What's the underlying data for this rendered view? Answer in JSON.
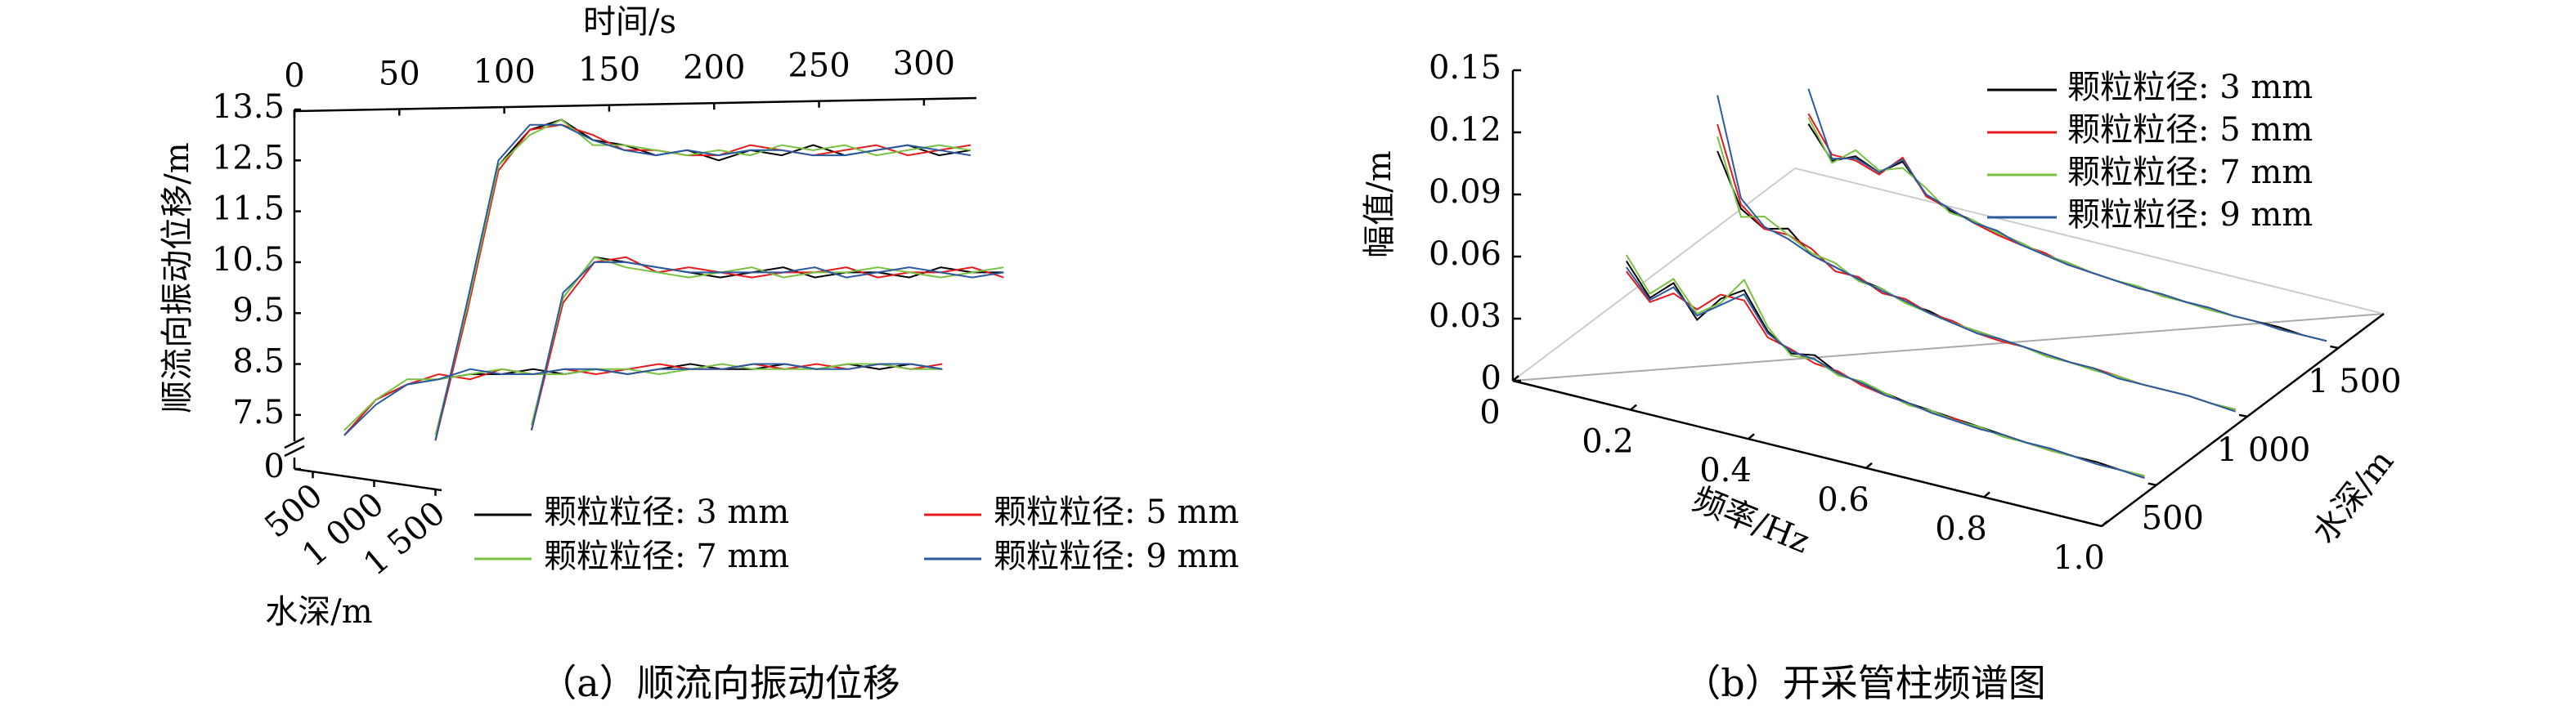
{
  "chart_data": [
    {
      "type": "line3d",
      "caption": "（a）顺流向振动位移",
      "x_label": "时间/s",
      "y_label": "顺流向振动位移/m",
      "z_label": "水深/m",
      "x": [
        0,
        15,
        30,
        45,
        60,
        75,
        90,
        105,
        120,
        135,
        150,
        165,
        180,
        195,
        210,
        225,
        240,
        255,
        270,
        285,
        300
      ],
      "xlim": [
        0,
        325
      ],
      "xticks": [
        0,
        50,
        100,
        150,
        200,
        250,
        300
      ],
      "ylim": [
        7,
        13.5
      ],
      "yticks": [
        0,
        7.5,
        8.5,
        9.5,
        10.5,
        11.5,
        12.5,
        13.5
      ],
      "y_break": true,
      "zlim": [
        350,
        1550
      ],
      "zticks": [
        500,
        {
          "value": 1000,
          "label": "1 000"
        },
        {
          "value": 1500,
          "label": "1 500"
        }
      ],
      "depths": [
        500,
        1000,
        1500
      ],
      "series": [
        {
          "name": "颗粒粒径: 3 mm",
          "color": "#000000",
          "values": [
            [
              null,
              7.1,
              7.8,
              8.1,
              8.2,
              8.3,
              8.3,
              8.4,
              8.3,
              8.4,
              8.3,
              8.4,
              8.5,
              8.4,
              8.4,
              8.5,
              8.4,
              8.5,
              8.4,
              8.5,
              8.4
            ],
            [
              null,
              null,
              null,
              null,
              null,
              7.2,
              9.8,
              10.6,
              10.5,
              10.4,
              10.3,
              10.2,
              10.3,
              10.4,
              10.2,
              10.3,
              10.3,
              10.2,
              10.4,
              10.3,
              10.3
            ],
            [
              7.0,
              9.6,
              12.4,
              13.1,
              13.3,
              12.9,
              12.8,
              12.6,
              12.7,
              12.5,
              12.7,
              12.6,
              12.8,
              12.6,
              12.7,
              12.8,
              12.6,
              12.7,
              null,
              null,
              null
            ]
          ]
        },
        {
          "name": "颗粒粒径: 5 mm",
          "color": "#e41a1c",
          "values": [
            [
              null,
              7.1,
              7.8,
              8.1,
              8.3,
              8.2,
              8.4,
              8.3,
              8.4,
              8.3,
              8.4,
              8.5,
              8.4,
              8.4,
              8.5,
              8.4,
              8.5,
              8.4,
              8.5,
              8.4,
              8.5
            ],
            [
              null,
              null,
              null,
              null,
              null,
              7.2,
              9.7,
              10.5,
              10.6,
              10.3,
              10.4,
              10.3,
              10.2,
              10.3,
              10.3,
              10.4,
              10.2,
              10.3,
              10.3,
              10.4,
              10.2
            ],
            [
              7.0,
              9.5,
              12.3,
              13.1,
              13.2,
              13.0,
              12.7,
              12.7,
              12.6,
              12.6,
              12.8,
              12.7,
              12.6,
              12.7,
              12.8,
              12.6,
              12.7,
              12.8,
              null,
              null,
              null
            ]
          ]
        },
        {
          "name": "颗粒粒径: 7 mm",
          "color": "#7ac143",
          "values": [
            [
              null,
              7.2,
              7.8,
              8.2,
              8.2,
              8.3,
              8.4,
              8.3,
              8.3,
              8.4,
              8.4,
              8.3,
              8.4,
              8.5,
              8.4,
              8.4,
              8.4,
              8.5,
              8.5,
              8.4,
              8.4
            ],
            [
              null,
              null,
              null,
              null,
              null,
              7.3,
              9.8,
              10.6,
              10.4,
              10.3,
              10.2,
              10.3,
              10.4,
              10.2,
              10.3,
              10.3,
              10.4,
              10.3,
              10.2,
              10.3,
              10.4
            ],
            [
              7.1,
              9.6,
              12.4,
              13.0,
              13.3,
              12.8,
              12.8,
              12.7,
              12.6,
              12.7,
              12.6,
              12.8,
              12.7,
              12.8,
              12.6,
              12.7,
              12.8,
              12.7,
              null,
              null,
              null
            ]
          ]
        },
        {
          "name": "颗粒粒径: 9 mm",
          "color": "#2c5aa0",
          "values": [
            [
              null,
              7.1,
              7.7,
              8.1,
              8.2,
              8.4,
              8.3,
              8.3,
              8.4,
              8.4,
              8.3,
              8.4,
              8.4,
              8.4,
              8.5,
              8.5,
              8.4,
              8.4,
              8.5,
              8.5,
              8.4
            ],
            [
              null,
              null,
              null,
              null,
              null,
              7.2,
              9.9,
              10.5,
              10.5,
              10.4,
              10.3,
              10.3,
              10.3,
              10.3,
              10.4,
              10.2,
              10.3,
              10.4,
              10.3,
              10.2,
              10.3
            ],
            [
              7.0,
              9.7,
              12.5,
              13.2,
              13.2,
              12.9,
              12.7,
              12.6,
              12.7,
              12.6,
              12.7,
              12.7,
              12.6,
              12.6,
              12.7,
              12.8,
              12.7,
              12.6,
              null,
              null,
              null
            ]
          ]
        }
      ]
    },
    {
      "type": "waterfall",
      "caption": "（b）开采管柱频谱图",
      "x_label": "频率/Hz",
      "y_label": "幅值/m",
      "z_label": "水深/m",
      "x": [
        0.1,
        0.14,
        0.18,
        0.22,
        0.26,
        0.3,
        0.34,
        0.38,
        0.42,
        0.46,
        0.5,
        0.54,
        0.58,
        0.62,
        0.66,
        0.7,
        0.74,
        0.78,
        0.82,
        0.86,
        0.9,
        0.94,
        0.98
      ],
      "xlim": [
        0,
        1
      ],
      "xticks": [
        0,
        0.2,
        0.4,
        0.6,
        0.8,
        {
          "value": 1,
          "label": "1.0"
        }
      ],
      "ylim": [
        0,
        0.15
      ],
      "yticks": [
        0,
        0.03,
        0.06,
        0.09,
        0.12,
        0.15
      ],
      "zlim": [
        200,
        1750
      ],
      "zticks": [
        500,
        {
          "value": 1000,
          "label": "1 000"
        },
        {
          "value": 1500,
          "label": "1 500"
        }
      ],
      "depths": [
        500,
        1000,
        1500
      ],
      "series": [
        {
          "name": "颗粒粒径: 3 mm",
          "color": "#000000",
          "values": [
            [
              0.045,
              0.03,
              0.04,
              0.025,
              0.038,
              0.045,
              0.028,
              0.02,
              0.022,
              0.016,
              0.014,
              0.012,
              0.01,
              0.009,
              0.008,
              0.007,
              0.006,
              0.005,
              0.005,
              0.004,
              0.004,
              0.003,
              0.003
            ],
            [
              0.065,
              0.04,
              0.033,
              0.036,
              0.026,
              0.023,
              0.02,
              0.018,
              0.014,
              0.013,
              0.01,
              0.009,
              0.008,
              0.007,
              0.006,
              0.005,
              0.005,
              0.004,
              0.003,
              0.003,
              0.003,
              0.002,
              0.002
            ],
            [
              0.045,
              0.03,
              0.035,
              0.03,
              0.038,
              0.025,
              0.02,
              0.018,
              0.015,
              0.013,
              0.01,
              0.009,
              0.007,
              0.006,
              0.005,
              0.005,
              0.004,
              0.004,
              0.003,
              0.003,
              0.003,
              0.002,
              0.002
            ]
          ]
        },
        {
          "name": "颗粒粒径: 5 mm",
          "color": "#e41a1c",
          "values": [
            [
              0.04,
              0.028,
              0.035,
              0.03,
              0.04,
              0.04,
              0.025,
              0.022,
              0.018,
              0.017,
              0.013,
              0.011,
              0.01,
              0.008,
              0.008,
              0.006,
              0.006,
              0.005,
              0.004,
              0.004,
              0.003,
              0.003,
              0.002
            ],
            [
              0.078,
              0.042,
              0.033,
              0.033,
              0.029,
              0.021,
              0.021,
              0.016,
              0.016,
              0.012,
              0.011,
              0.008,
              0.007,
              0.007,
              0.006,
              0.005,
              0.005,
              0.004,
              0.003,
              0.003,
              0.003,
              0.002,
              0.002
            ],
            [
              0.05,
              0.033,
              0.033,
              0.029,
              0.04,
              0.024,
              0.021,
              0.017,
              0.014,
              0.012,
              0.011,
              0.008,
              0.007,
              0.006,
              0.005,
              0.005,
              0.004,
              0.004,
              0.003,
              0.003,
              0.002,
              0.002,
              0.002
            ]
          ]
        },
        {
          "name": "颗粒粒径: 7 mm",
          "color": "#7ac143",
          "values": [
            [
              0.048,
              0.032,
              0.042,
              0.028,
              0.036,
              0.05,
              0.03,
              0.019,
              0.02,
              0.015,
              0.015,
              0.012,
              0.009,
              0.009,
              0.007,
              0.007,
              0.005,
              0.005,
              0.004,
              0.004,
              0.003,
              0.003,
              0.003
            ],
            [
              0.072,
              0.036,
              0.039,
              0.033,
              0.027,
              0.025,
              0.019,
              0.018,
              0.014,
              0.012,
              0.01,
              0.009,
              0.008,
              0.007,
              0.005,
              0.005,
              0.004,
              0.004,
              0.003,
              0.003,
              0.003,
              0.002,
              0.002
            ],
            [
              0.048,
              0.029,
              0.038,
              0.031,
              0.035,
              0.028,
              0.019,
              0.018,
              0.015,
              0.013,
              0.01,
              0.009,
              0.007,
              0.006,
              0.006,
              0.004,
              0.004,
              0.003,
              0.003,
              0.003,
              0.002,
              0.002,
              0.002
            ]
          ]
        },
        {
          "name": "颗粒粒径: 9 mm",
          "color": "#2c5aa0",
          "values": [
            [
              0.042,
              0.029,
              0.038,
              0.027,
              0.035,
              0.043,
              0.027,
              0.021,
              0.02,
              0.016,
              0.014,
              0.011,
              0.01,
              0.008,
              0.007,
              0.006,
              0.006,
              0.005,
              0.005,
              0.004,
              0.003,
              0.003,
              0.002
            ],
            [
              0.092,
              0.045,
              0.034,
              0.031,
              0.026,
              0.023,
              0.02,
              0.017,
              0.015,
              0.012,
              0.01,
              0.008,
              0.008,
              0.007,
              0.006,
              0.005,
              0.005,
              0.003,
              0.003,
              0.003,
              0.003,
              0.002,
              0.001
            ],
            [
              0.062,
              0.031,
              0.034,
              0.03,
              0.039,
              0.025,
              0.021,
              0.017,
              0.016,
              0.012,
              0.01,
              0.008,
              0.007,
              0.006,
              0.005,
              0.005,
              0.004,
              0.004,
              0.003,
              0.003,
              0.002,
              0.002,
              0.002
            ]
          ]
        }
      ]
    }
  ]
}
